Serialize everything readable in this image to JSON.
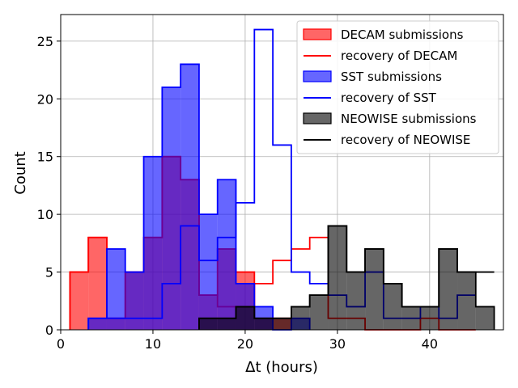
{
  "chart_data": {
    "type": "histogram",
    "xlabel_math": "Δt",
    "xlabel_unit": "(hours)",
    "ylabel": "Count",
    "xlim": [
      0,
      48
    ],
    "ylim": [
      0,
      27.3
    ],
    "xticks": [
      0,
      10,
      20,
      30,
      40
    ],
    "yticks": [
      0,
      5,
      10,
      15,
      20,
      25
    ],
    "grid": true,
    "legend_position": "top-right",
    "bin_width": 2,
    "series": [
      {
        "name": "DECAM submissions",
        "kind": "filled",
        "color": "#ff0000",
        "bin_starts": [
          1,
          3,
          5,
          7,
          9,
          11,
          13,
          15,
          17,
          19,
          21,
          23
        ],
        "values": [
          5,
          8,
          1,
          5,
          8,
          15,
          13,
          3,
          7,
          5,
          1,
          1
        ]
      },
      {
        "name": "recovery of DECAM",
        "kind": "step",
        "color": "#ff0000",
        "bin_starts": [
          1,
          3,
          5,
          7,
          9,
          11,
          13,
          15,
          17,
          19,
          21,
          23,
          25,
          27,
          29,
          31,
          33,
          35,
          37,
          39,
          41,
          43
        ],
        "values": [
          5,
          8,
          1,
          5,
          8,
          15,
          13,
          3,
          2,
          2,
          4,
          6,
          7,
          8,
          1,
          1,
          0,
          0,
          0,
          1,
          0,
          0
        ]
      },
      {
        "name": "SST submissions",
        "kind": "filled",
        "color": "#0000ff",
        "bin_starts": [
          3,
          5,
          7,
          9,
          11,
          13,
          15,
          17,
          19,
          21,
          23,
          25
        ],
        "values": [
          1,
          7,
          5,
          15,
          21,
          23,
          10,
          13,
          4,
          2,
          0,
          1
        ]
      },
      {
        "name": "recovery of SST",
        "kind": "step",
        "color": "#0000ff",
        "bin_starts": [
          3,
          5,
          7,
          9,
          11,
          13,
          15,
          17,
          19,
          21,
          23,
          25,
          27,
          29,
          31,
          33,
          35,
          37,
          39,
          41,
          43
        ],
        "values": [
          1,
          1,
          1,
          1,
          4,
          9,
          6,
          8,
          11,
          26,
          16,
          5,
          4,
          3,
          2,
          5,
          1,
          1,
          2,
          1,
          3
        ]
      },
      {
        "name": "NEOWISE submissions",
        "kind": "filled",
        "color": "#000000",
        "bin_starts": [
          15,
          17,
          19,
          21,
          23,
          25,
          27,
          29,
          31,
          33,
          35,
          37,
          39,
          41,
          43,
          45
        ],
        "values": [
          1,
          1,
          2,
          1,
          1,
          2,
          3,
          9,
          5,
          7,
          4,
          2,
          2,
          7,
          5,
          2
        ]
      },
      {
        "name": "recovery of NEOWISE",
        "kind": "step",
        "color": "#000000",
        "bin_starts": [
          15,
          17,
          19,
          21,
          23,
          25,
          27,
          29,
          31,
          33,
          35,
          37,
          39,
          41,
          43,
          45
        ],
        "values": [
          1,
          1,
          2,
          1,
          1,
          2,
          3,
          9,
          5,
          7,
          4,
          2,
          2,
          7,
          5,
          5
        ]
      }
    ]
  }
}
